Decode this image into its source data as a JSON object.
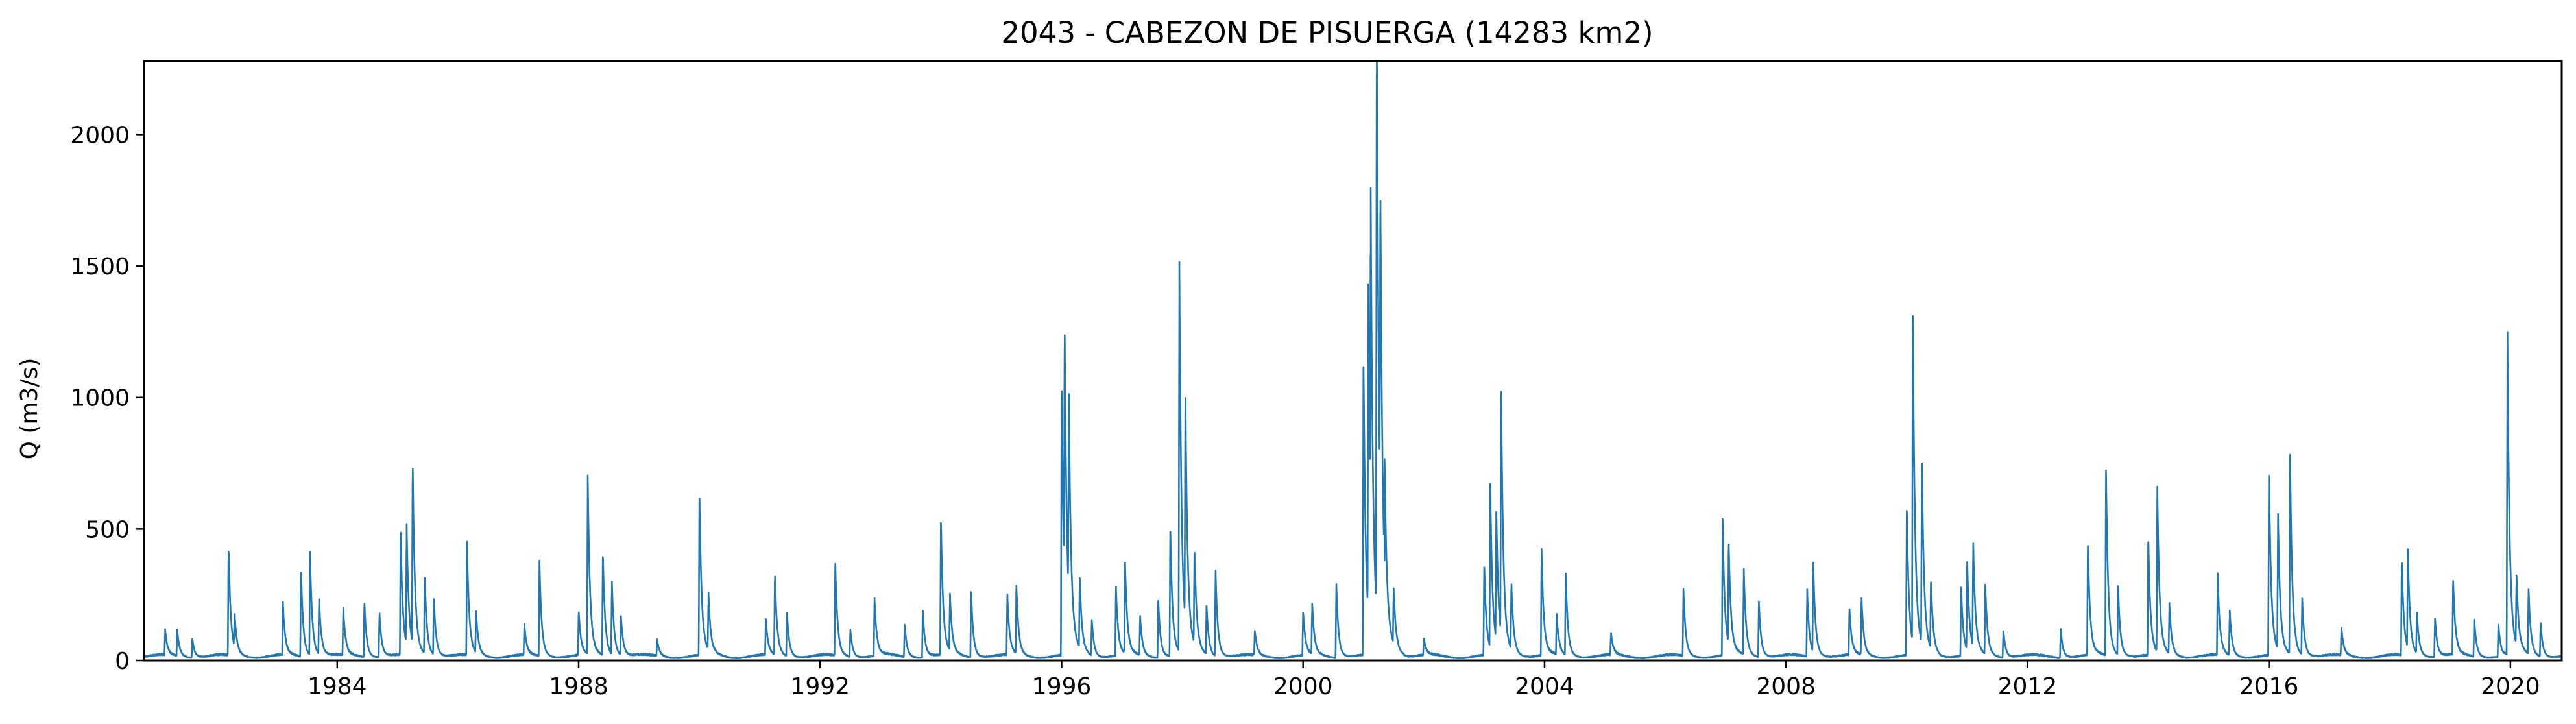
{
  "chart_data": {
    "type": "line",
    "title": "2043 - CABEZON DE PISUERGA (14283 km2)",
    "xlabel": "",
    "ylabel": "Q (m3/s)",
    "xlim": [
      1980.8,
      2020.85
    ],
    "ylim": [
      0,
      2280
    ],
    "grid": false,
    "legend": "none",
    "line_color": "#1f77b4",
    "x_ticks": [
      {
        "value": 1984,
        "label": "1984"
      },
      {
        "value": 1988,
        "label": "1988"
      },
      {
        "value": 1992,
        "label": "1992"
      },
      {
        "value": 1996,
        "label": "1996"
      },
      {
        "value": 2000,
        "label": "2000"
      },
      {
        "value": 2004,
        "label": "2004"
      },
      {
        "value": 2008,
        "label": "2008"
      },
      {
        "value": 2012,
        "label": "2012"
      },
      {
        "value": 2016,
        "label": "2016"
      },
      {
        "value": 2020,
        "label": "2020"
      }
    ],
    "y_ticks": [
      {
        "value": 0,
        "label": "0"
      },
      {
        "value": 500,
        "label": "500"
      },
      {
        "value": 1000,
        "label": "1000"
      },
      {
        "value": 1500,
        "label": "1500"
      },
      {
        "value": 2000,
        "label": "2000"
      }
    ],
    "baseflow": 15,
    "peaks": [
      {
        "x": 1981.15,
        "y": 90
      },
      {
        "x": 1981.35,
        "y": 95
      },
      {
        "x": 1981.6,
        "y": 70
      },
      {
        "x": 1982.2,
        "y": 390
      },
      {
        "x": 1982.3,
        "y": 120
      },
      {
        "x": 1983.1,
        "y": 190
      },
      {
        "x": 1983.4,
        "y": 320
      },
      {
        "x": 1983.55,
        "y": 370
      },
      {
        "x": 1983.7,
        "y": 200
      },
      {
        "x": 1984.1,
        "y": 170
      },
      {
        "x": 1984.45,
        "y": 200
      },
      {
        "x": 1984.7,
        "y": 160
      },
      {
        "x": 1985.05,
        "y": 455
      },
      {
        "x": 1985.25,
        "y": 650
      },
      {
        "x": 1985.15,
        "y": 430
      },
      {
        "x": 1985.45,
        "y": 280
      },
      {
        "x": 1985.6,
        "y": 210
      },
      {
        "x": 1986.15,
        "y": 405
      },
      {
        "x": 1986.3,
        "y": 150
      },
      {
        "x": 1987.1,
        "y": 110
      },
      {
        "x": 1987.35,
        "y": 340
      },
      {
        "x": 1988.0,
        "y": 160
      },
      {
        "x": 1988.15,
        "y": 635
      },
      {
        "x": 1988.4,
        "y": 370
      },
      {
        "x": 1988.55,
        "y": 260
      },
      {
        "x": 1988.7,
        "y": 140
      },
      {
        "x": 1989.3,
        "y": 60
      },
      {
        "x": 1990.0,
        "y": 590
      },
      {
        "x": 1990.15,
        "y": 200
      },
      {
        "x": 1991.1,
        "y": 130
      },
      {
        "x": 1991.25,
        "y": 290
      },
      {
        "x": 1991.45,
        "y": 160
      },
      {
        "x": 1992.25,
        "y": 340
      },
      {
        "x": 1992.5,
        "y": 100
      },
      {
        "x": 1992.9,
        "y": 210
      },
      {
        "x": 1993.4,
        "y": 120
      },
      {
        "x": 1993.7,
        "y": 170
      },
      {
        "x": 1994.0,
        "y": 500
      },
      {
        "x": 1994.15,
        "y": 200
      },
      {
        "x": 1994.5,
        "y": 240
      },
      {
        "x": 1995.1,
        "y": 220
      },
      {
        "x": 1995.25,
        "y": 250
      },
      {
        "x": 1996.0,
        "y": 1000
      },
      {
        "x": 1996.05,
        "y": 920
      },
      {
        "x": 1996.12,
        "y": 720
      },
      {
        "x": 1996.3,
        "y": 250
      },
      {
        "x": 1996.5,
        "y": 130
      },
      {
        "x": 1996.9,
        "y": 250
      },
      {
        "x": 1997.05,
        "y": 335
      },
      {
        "x": 1997.3,
        "y": 140
      },
      {
        "x": 1997.6,
        "y": 215
      },
      {
        "x": 1997.8,
        "y": 470
      },
      {
        "x": 1997.95,
        "y": 1395
      },
      {
        "x": 1998.05,
        "y": 830
      },
      {
        "x": 1998.2,
        "y": 340
      },
      {
        "x": 1998.4,
        "y": 180
      },
      {
        "x": 1998.55,
        "y": 305
      },
      {
        "x": 1999.2,
        "y": 90
      },
      {
        "x": 2000.0,
        "y": 160
      },
      {
        "x": 2000.15,
        "y": 180
      },
      {
        "x": 2000.55,
        "y": 265
      },
      {
        "x": 2001.0,
        "y": 1090
      },
      {
        "x": 2001.08,
        "y": 1240
      },
      {
        "x": 2001.12,
        "y": 1170
      },
      {
        "x": 2001.22,
        "y": 2170
      },
      {
        "x": 2001.28,
        "y": 1170
      },
      {
        "x": 2001.35,
        "y": 380
      },
      {
        "x": 2001.5,
        "y": 200
      },
      {
        "x": 2002.0,
        "y": 60
      },
      {
        "x": 2003.0,
        "y": 330
      },
      {
        "x": 2003.1,
        "y": 595
      },
      {
        "x": 2003.2,
        "y": 480
      },
      {
        "x": 2003.28,
        "y": 905
      },
      {
        "x": 2003.45,
        "y": 240
      },
      {
        "x": 2003.95,
        "y": 380
      },
      {
        "x": 2004.2,
        "y": 150
      },
      {
        "x": 2004.35,
        "y": 290
      },
      {
        "x": 2005.1,
        "y": 80
      },
      {
        "x": 2006.3,
        "y": 245
      },
      {
        "x": 2006.95,
        "y": 490
      },
      {
        "x": 2007.05,
        "y": 370
      },
      {
        "x": 2007.3,
        "y": 310
      },
      {
        "x": 2007.55,
        "y": 200
      },
      {
        "x": 2008.35,
        "y": 240
      },
      {
        "x": 2008.45,
        "y": 330
      },
      {
        "x": 2009.05,
        "y": 170
      },
      {
        "x": 2009.25,
        "y": 210
      },
      {
        "x": 2010.0,
        "y": 545
      },
      {
        "x": 2010.1,
        "y": 1190
      },
      {
        "x": 2010.25,
        "y": 670
      },
      {
        "x": 2010.4,
        "y": 250
      },
      {
        "x": 2010.9,
        "y": 250
      },
      {
        "x": 2011.0,
        "y": 330
      },
      {
        "x": 2011.1,
        "y": 375
      },
      {
        "x": 2011.3,
        "y": 250
      },
      {
        "x": 2011.6,
        "y": 100
      },
      {
        "x": 2012.55,
        "y": 105
      },
      {
        "x": 2013.0,
        "y": 410
      },
      {
        "x": 2013.3,
        "y": 675
      },
      {
        "x": 2013.5,
        "y": 250
      },
      {
        "x": 2014.0,
        "y": 430
      },
      {
        "x": 2014.15,
        "y": 590
      },
      {
        "x": 2014.35,
        "y": 180
      },
      {
        "x": 2015.15,
        "y": 290
      },
      {
        "x": 2015.35,
        "y": 160
      },
      {
        "x": 2016.0,
        "y": 680
      },
      {
        "x": 2016.15,
        "y": 480
      },
      {
        "x": 2016.35,
        "y": 710
      },
      {
        "x": 2016.55,
        "y": 200
      },
      {
        "x": 2017.2,
        "y": 100
      },
      {
        "x": 2018.2,
        "y": 345
      },
      {
        "x": 2018.3,
        "y": 360
      },
      {
        "x": 2018.45,
        "y": 150
      },
      {
        "x": 2018.75,
        "y": 140
      },
      {
        "x": 2019.05,
        "y": 275
      },
      {
        "x": 2019.4,
        "y": 140
      },
      {
        "x": 2019.8,
        "y": 120
      },
      {
        "x": 2019.95,
        "y": 1155
      },
      {
        "x": 2020.1,
        "y": 250
      },
      {
        "x": 2020.3,
        "y": 235
      },
      {
        "x": 2020.5,
        "y": 120
      }
    ]
  }
}
